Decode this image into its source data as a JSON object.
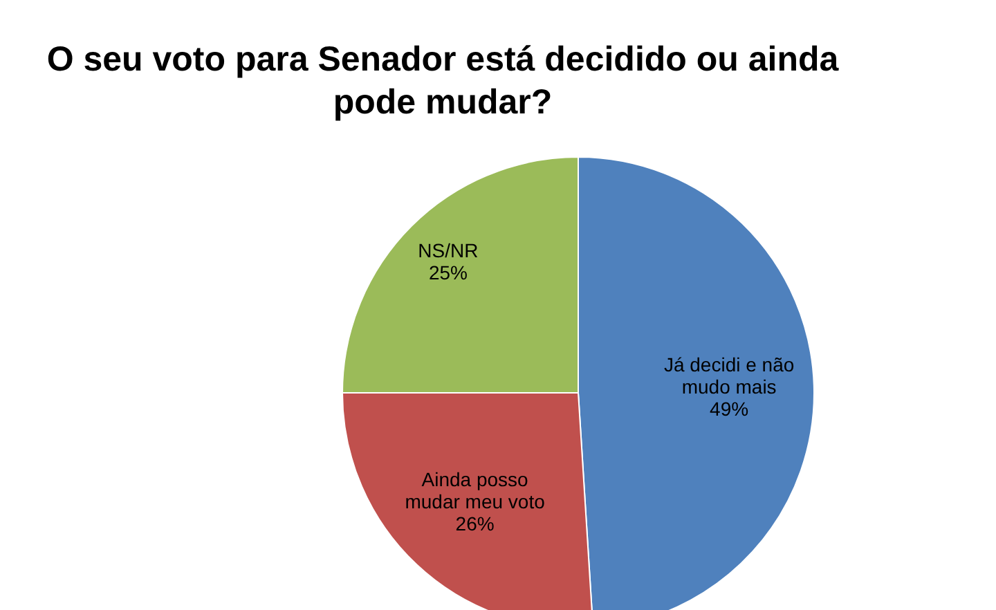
{
  "chart_data": {
    "type": "pie",
    "title": "O seu voto para Senador está decidido ou ainda pode mudar?",
    "categories": [
      "Já decidi e não mudo mais",
      "Ainda posso mudar meu voto",
      "NS/NR"
    ],
    "values": [
      49,
      26,
      25
    ],
    "colors": [
      "#4f81bd",
      "#c0504d",
      "#9bbb59"
    ],
    "value_labels": [
      "49%",
      "26%",
      "25%"
    ],
    "legend": false
  }
}
